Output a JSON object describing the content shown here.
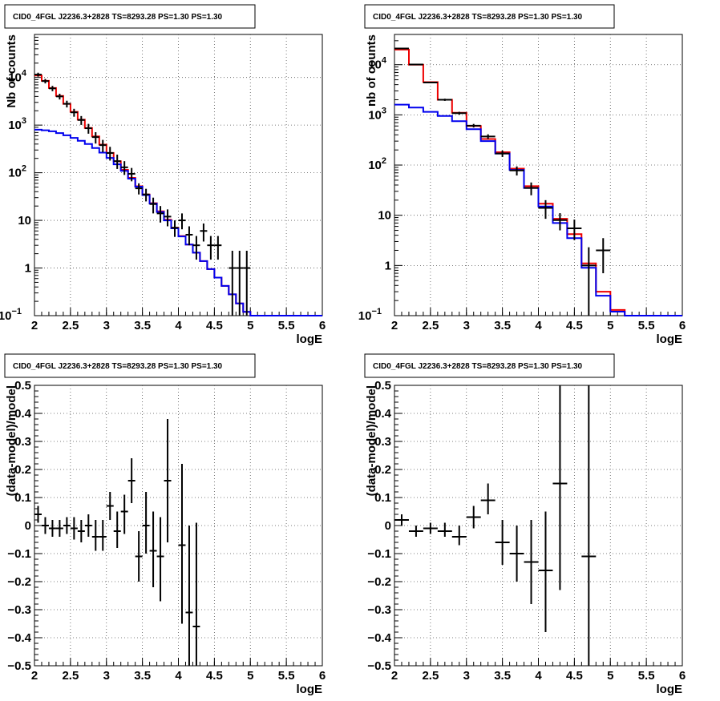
{
  "colors": {
    "data": "#000000",
    "total_model": "#ee0000",
    "source_model": "#0000ee",
    "grid": "#555555"
  },
  "chart_data": [
    {
      "type": "line",
      "title": "CID0_4FGL J2236.3+2828 TS=8293.28 PS=1.30 PS=1.30",
      "xlabel": "logE",
      "ylabel": "Nb of counts",
      "xlim": [
        2,
        6
      ],
      "ylim": [
        0.1,
        80000
      ],
      "yscale": "log",
      "grid": true,
      "xticks": [
        "2",
        "2.5",
        "3",
        "3.5",
        "4",
        "4.5",
        "5",
        "5.5",
        "6"
      ],
      "yticks": [
        {
          "v": 0.1,
          "label": "10",
          "exp": "−1"
        },
        {
          "v": 1,
          "label": "1",
          "exp": ""
        },
        {
          "v": 10,
          "label": "10",
          "exp": ""
        },
        {
          "v": 100,
          "label": "10",
          "exp": "2"
        },
        {
          "v": 1000,
          "label": "10",
          "exp": "3"
        },
        {
          "v": 10000,
          "label": "10",
          "exp": "4"
        }
      ],
      "bin_edges_start": 2.0,
      "bin_width": 0.1,
      "series": [
        {
          "key": "total_model",
          "style": "step",
          "values": [
            11000,
            8500,
            6000,
            4100,
            2800,
            1900,
            1300,
            870,
            580,
            390,
            260,
            175,
            115,
            78,
            52,
            35,
            23,
            15.5,
            10.3,
            7.0,
            4.7,
            3.1,
            2.1,
            1.4,
            0.95,
            0.63,
            0.42,
            0.28,
            0.18,
            0.12,
            0.1,
            0.1,
            0.1,
            0.1,
            0.1,
            0.1,
            0.1,
            0.1,
            0.1,
            0.1
          ]
        },
        {
          "key": "source_model",
          "style": "step",
          "values": [
            800,
            780,
            740,
            680,
            610,
            540,
            470,
            400,
            330,
            265,
            205,
            150,
            110,
            75,
            51,
            34,
            22.5,
            15,
            10,
            6.8,
            4.6,
            3.1,
            2.1,
            1.4,
            0.95,
            0.63,
            0.42,
            0.28,
            0.18,
            0.12,
            0.1,
            0.1,
            0.1,
            0.1,
            0.1,
            0.1,
            0.1,
            0.1,
            0.1,
            0.1
          ]
        },
        {
          "key": "data",
          "style": "errorbar",
          "points": [
            {
              "x": 2.05,
              "y": 11500,
              "lo": 10400,
              "hi": 12600
            },
            {
              "x": 2.15,
              "y": 8400,
              "lo": 7500,
              "hi": 9300
            },
            {
              "x": 2.25,
              "y": 5900,
              "lo": 5150,
              "hi": 6650
            },
            {
              "x": 2.35,
              "y": 4000,
              "lo": 3450,
              "hi": 4550
            },
            {
              "x": 2.45,
              "y": 2800,
              "lo": 2350,
              "hi": 3250
            },
            {
              "x": 2.55,
              "y": 1850,
              "lo": 1500,
              "hi": 2200
            },
            {
              "x": 2.65,
              "y": 1280,
              "lo": 1010,
              "hi": 1550
            },
            {
              "x": 2.75,
              "y": 860,
              "lo": 660,
              "hi": 1060
            },
            {
              "x": 2.85,
              "y": 560,
              "lo": 410,
              "hi": 710
            },
            {
              "x": 2.95,
              "y": 380,
              "lo": 270,
              "hi": 490
            },
            {
              "x": 3.05,
              "y": 260,
              "lo": 180,
              "hi": 350
            },
            {
              "x": 3.15,
              "y": 175,
              "lo": 120,
              "hi": 240
            },
            {
              "x": 3.25,
              "y": 130,
              "lo": 90,
              "hi": 175
            },
            {
              "x": 3.35,
              "y": 95,
              "lo": 66,
              "hi": 126
            },
            {
              "x": 3.45,
              "y": 47,
              "lo": 35,
              "hi": 60
            },
            {
              "x": 3.55,
              "y": 35,
              "lo": 25,
              "hi": 46
            },
            {
              "x": 3.65,
              "y": 22,
              "lo": 14,
              "hi": 30
            },
            {
              "x": 3.75,
              "y": 14,
              "lo": 9,
              "hi": 20
            },
            {
              "x": 3.85,
              "y": 12,
              "lo": 7.5,
              "hi": 17
            },
            {
              "x": 3.95,
              "y": 7,
              "lo": 4.5,
              "hi": 10
            },
            {
              "x": 4.05,
              "y": 10,
              "lo": 6.5,
              "hi": 14
            },
            {
              "x": 4.15,
              "y": 5,
              "lo": 3,
              "hi": 7.5
            },
            {
              "x": 4.25,
              "y": 3,
              "lo": 1.5,
              "hi": 4.7
            },
            {
              "x": 4.35,
              "y": 6,
              "lo": 3.6,
              "hi": 8.6
            },
            {
              "x": 4.45,
              "y": 3,
              "lo": 1.5,
              "hi": 4.7
            },
            {
              "x": 4.55,
              "y": 3,
              "lo": 1.5,
              "hi": 4.7
            },
            {
              "x": 4.75,
              "y": 1,
              "lo": 0.1,
              "hi": 2.3
            },
            {
              "x": 4.85,
              "y": 1,
              "lo": 0.1,
              "hi": 2.3
            },
            {
              "x": 4.95,
              "y": 1,
              "lo": 0.1,
              "hi": 2.3
            }
          ]
        }
      ]
    },
    {
      "type": "line",
      "title": "CID0_4FGL J2236.3+2828 TS=8293.28 PS=1.30 PS=1.30",
      "xlabel": "logE",
      "ylabel": "nb of counts",
      "xlim": [
        2,
        6
      ],
      "ylim": [
        0.1,
        40000
      ],
      "yscale": "log",
      "grid": true,
      "xticks": [
        "2",
        "2.5",
        "3",
        "3.5",
        "4",
        "4.5",
        "5",
        "5.5",
        "6"
      ],
      "yticks": [
        {
          "v": 0.1,
          "label": "10",
          "exp": "−1"
        },
        {
          "v": 1,
          "label": "1",
          "exp": ""
        },
        {
          "v": 10,
          "label": "10",
          "exp": ""
        },
        {
          "v": 100,
          "label": "10",
          "exp": "2"
        },
        {
          "v": 1000,
          "label": "10",
          "exp": "3"
        },
        {
          "v": 10000,
          "label": "10",
          "exp": "4"
        }
      ],
      "bin_edges_start": 2.0,
      "bin_width": 0.2,
      "series": [
        {
          "key": "total_model",
          "style": "step",
          "values": [
            20000,
            10000,
            4500,
            2000,
            1100,
            600,
            330,
            180,
            85,
            38,
            17,
            8.5,
            4.2,
            1.1,
            0.3,
            0.13,
            0.1,
            0.1,
            0.1,
            0.1
          ]
        },
        {
          "key": "source_model",
          "style": "step",
          "values": [
            1600,
            1400,
            1150,
            950,
            750,
            520,
            300,
            170,
            80,
            35,
            15,
            7,
            3.5,
            0.9,
            0.25,
            0.12,
            0.1,
            0.1,
            0.1,
            0.1
          ]
        },
        {
          "key": "data",
          "style": "errorbar",
          "points": [
            {
              "x": 2.1,
              "y": 21000,
              "lo": 20600,
              "hi": 21400
            },
            {
              "x": 2.3,
              "y": 10100,
              "lo": 9800,
              "hi": 10400
            },
            {
              "x": 2.5,
              "y": 4400,
              "lo": 4250,
              "hi": 4550
            },
            {
              "x": 2.7,
              "y": 2000,
              "lo": 1900,
              "hi": 2100
            },
            {
              "x": 2.9,
              "y": 1080,
              "lo": 1010,
              "hi": 1150
            },
            {
              "x": 3.1,
              "y": 610,
              "lo": 560,
              "hi": 660
            },
            {
              "x": 3.3,
              "y": 370,
              "lo": 330,
              "hi": 410
            },
            {
              "x": 3.5,
              "y": 170,
              "lo": 145,
              "hi": 195
            },
            {
              "x": 3.7,
              "y": 78,
              "lo": 62,
              "hi": 94
            },
            {
              "x": 3.9,
              "y": 35,
              "lo": 25,
              "hi": 45
            },
            {
              "x": 4.1,
              "y": 14,
              "lo": 8.5,
              "hi": 20
            },
            {
              "x": 4.3,
              "y": 8,
              "lo": 5,
              "hi": 11
            },
            {
              "x": 4.5,
              "y": 5.5,
              "lo": 3.2,
              "hi": 8.2
            },
            {
              "x": 4.7,
              "y": 1,
              "lo": 0.1,
              "hi": 2.3
            },
            {
              "x": 4.9,
              "y": 2,
              "lo": 0.7,
              "hi": 3.5
            }
          ]
        }
      ]
    },
    {
      "type": "scatter",
      "title": "CID0_4FGL J2236.3+2828 TS=8293.28 PS=1.30 PS=1.30",
      "xlabel": "logE",
      "ylabel": "(data-model)/model",
      "xlim": [
        2,
        6
      ],
      "ylim": [
        -0.5,
        0.5
      ],
      "yscale": "linear",
      "grid": true,
      "xticks": [
        "2",
        "2.5",
        "3",
        "3.5",
        "4",
        "4.5",
        "5",
        "5.5",
        "6"
      ],
      "yticks": [
        {
          "v": -0.5,
          "label": "−0.5",
          "exp": ""
        },
        {
          "v": -0.4,
          "label": "−0.4",
          "exp": ""
        },
        {
          "v": -0.3,
          "label": "−0.3",
          "exp": ""
        },
        {
          "v": -0.2,
          "label": "−0.2",
          "exp": ""
        },
        {
          "v": -0.1,
          "label": "−0.1",
          "exp": ""
        },
        {
          "v": 0,
          "label": "0",
          "exp": ""
        },
        {
          "v": 0.1,
          "label": "0.1",
          "exp": ""
        },
        {
          "v": 0.2,
          "label": "0.2",
          "exp": ""
        },
        {
          "v": 0.3,
          "label": "0.3",
          "exp": ""
        },
        {
          "v": 0.4,
          "label": "0.4",
          "exp": ""
        },
        {
          "v": 0.5,
          "label": "0.5",
          "exp": ""
        }
      ],
      "xhalfwidth": 0.05,
      "series": [
        {
          "key": "data",
          "style": "errorbar",
          "points": [
            {
              "x": 2.05,
              "y": 0.04,
              "lo": 0.01,
              "hi": 0.07
            },
            {
              "x": 2.15,
              "y": 0.0,
              "lo": -0.03,
              "hi": 0.03
            },
            {
              "x": 2.25,
              "y": -0.01,
              "lo": -0.04,
              "hi": 0.02
            },
            {
              "x": 2.35,
              "y": -0.01,
              "lo": -0.04,
              "hi": 0.02
            },
            {
              "x": 2.45,
              "y": 0.0,
              "lo": -0.03,
              "hi": 0.03
            },
            {
              "x": 2.55,
              "y": -0.01,
              "lo": -0.05,
              "hi": 0.03
            },
            {
              "x": 2.65,
              "y": -0.02,
              "lo": -0.06,
              "hi": 0.02
            },
            {
              "x": 2.75,
              "y": 0.0,
              "lo": -0.04,
              "hi": 0.04
            },
            {
              "x": 2.85,
              "y": -0.04,
              "lo": -0.09,
              "hi": 0.02
            },
            {
              "x": 2.95,
              "y": -0.04,
              "lo": -0.09,
              "hi": 0.02
            },
            {
              "x": 3.05,
              "y": 0.07,
              "lo": 0.02,
              "hi": 0.12
            },
            {
              "x": 3.15,
              "y": -0.02,
              "lo": -0.08,
              "hi": 0.05
            },
            {
              "x": 3.25,
              "y": 0.05,
              "lo": -0.03,
              "hi": 0.11
            },
            {
              "x": 3.35,
              "y": 0.16,
              "lo": 0.08,
              "hi": 0.24
            },
            {
              "x": 3.45,
              "y": -0.11,
              "lo": -0.2,
              "hi": -0.02
            },
            {
              "x": 3.55,
              "y": 0.0,
              "lo": -0.1,
              "hi": 0.12
            },
            {
              "x": 3.65,
              "y": -0.09,
              "lo": -0.22,
              "hi": 0.05
            },
            {
              "x": 3.75,
              "y": -0.11,
              "lo": -0.27,
              "hi": 0.03
            },
            {
              "x": 3.85,
              "y": 0.16,
              "lo": -0.06,
              "hi": 0.38
            },
            {
              "x": 4.05,
              "y": -0.07,
              "lo": -0.35,
              "hi": 0.22
            },
            {
              "x": 4.15,
              "y": -0.31,
              "lo": -0.5,
              "hi": 0.0
            },
            {
              "x": 4.25,
              "y": -0.36,
              "lo": -0.5,
              "hi": 0.01
            }
          ]
        }
      ]
    },
    {
      "type": "scatter",
      "title": "CID0_4FGL J2236.3+2828 TS=8293.28 PS=1.30 PS=1.30",
      "xlabel": "logE",
      "ylabel": "(data-model)/model",
      "xlim": [
        2,
        6
      ],
      "ylim": [
        -0.5,
        0.5
      ],
      "yscale": "linear",
      "grid": true,
      "xticks": [
        "2",
        "2.5",
        "3",
        "3.5",
        "4",
        "4.5",
        "5",
        "5.5",
        "6"
      ],
      "yticks": [
        {
          "v": -0.5,
          "label": "−0.5",
          "exp": ""
        },
        {
          "v": -0.4,
          "label": "−0.4",
          "exp": ""
        },
        {
          "v": -0.3,
          "label": "−0.3",
          "exp": ""
        },
        {
          "v": -0.2,
          "label": "−0.2",
          "exp": ""
        },
        {
          "v": -0.1,
          "label": "−0.1",
          "exp": ""
        },
        {
          "v": 0,
          "label": "0",
          "exp": ""
        },
        {
          "v": 0.1,
          "label": "0.1",
          "exp": ""
        },
        {
          "v": 0.2,
          "label": "0.2",
          "exp": ""
        },
        {
          "v": 0.3,
          "label": "0.3",
          "exp": ""
        },
        {
          "v": 0.4,
          "label": "0.4",
          "exp": ""
        },
        {
          "v": 0.5,
          "label": "0.5",
          "exp": ""
        }
      ],
      "xhalfwidth": 0.1,
      "series": [
        {
          "key": "data",
          "style": "errorbar",
          "points": [
            {
              "x": 2.1,
              "y": 0.02,
              "lo": 0.0,
              "hi": 0.04
            },
            {
              "x": 2.3,
              "y": -0.02,
              "lo": -0.04,
              "hi": 0.0
            },
            {
              "x": 2.5,
              "y": -0.01,
              "lo": -0.03,
              "hi": 0.01
            },
            {
              "x": 2.7,
              "y": -0.02,
              "lo": -0.04,
              "hi": 0.01
            },
            {
              "x": 2.9,
              "y": -0.04,
              "lo": -0.07,
              "hi": 0.0
            },
            {
              "x": 3.1,
              "y": 0.03,
              "lo": -0.01,
              "hi": 0.07
            },
            {
              "x": 3.3,
              "y": 0.09,
              "lo": 0.04,
              "hi": 0.15
            },
            {
              "x": 3.5,
              "y": -0.06,
              "lo": -0.14,
              "hi": 0.02
            },
            {
              "x": 3.7,
              "y": -0.1,
              "lo": -0.2,
              "hi": 0.0
            },
            {
              "x": 3.9,
              "y": -0.13,
              "lo": -0.28,
              "hi": 0.02
            },
            {
              "x": 4.1,
              "y": -0.16,
              "lo": -0.38,
              "hi": 0.05
            },
            {
              "x": 4.3,
              "y": 0.15,
              "lo": -0.23,
              "hi": 0.5
            },
            {
              "x": 4.7,
              "y": -0.11,
              "lo": -0.5,
              "hi": 0.5
            }
          ]
        }
      ]
    }
  ]
}
